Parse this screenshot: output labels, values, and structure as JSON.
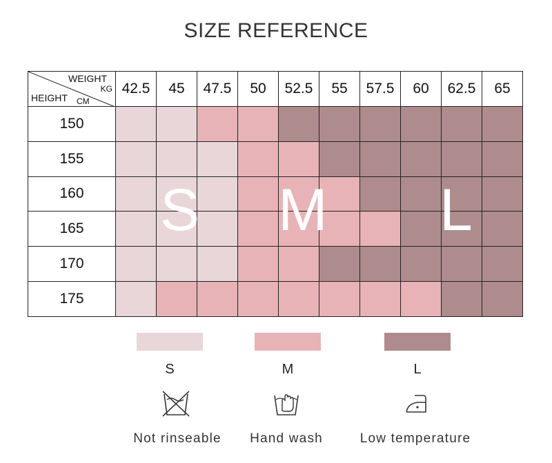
{
  "title": "SIZE REFERENCE",
  "corner": {
    "weight": "WEIGHT",
    "kg": "KG",
    "height": "HEIGHT",
    "cm": "CM"
  },
  "weights": [
    "42.5",
    "45",
    "47.5",
    "50",
    "52.5",
    "55",
    "57.5",
    "60",
    "62.5",
    "65"
  ],
  "heights": [
    "150",
    "155",
    "160",
    "165",
    "170",
    "175"
  ],
  "size_map": [
    [
      "S",
      "S",
      "M",
      "M",
      "L",
      "L",
      "L",
      "L",
      "L",
      "L"
    ],
    [
      "S",
      "S",
      "S",
      "M",
      "M",
      "L",
      "L",
      "L",
      "L",
      "L"
    ],
    [
      "S",
      "S",
      "S",
      "M",
      "M",
      "M",
      "L",
      "L",
      "L",
      "L"
    ],
    [
      "S",
      "S",
      "S",
      "M",
      "M",
      "M",
      "M",
      "L",
      "L",
      "L"
    ],
    [
      "S",
      "S",
      "S",
      "M",
      "M",
      "L",
      "L",
      "L",
      "L",
      "L"
    ],
    [
      "S",
      "M",
      "M",
      "M",
      "M",
      "M",
      "M",
      "M",
      "L",
      "L"
    ]
  ],
  "zone_letters": {
    "S": "S",
    "M": "M",
    "L": "L"
  },
  "colors": {
    "S": "#e8d6d9",
    "M": "#e8b3b6",
    "L": "#ae8b8c"
  },
  "legend": [
    {
      "label": "S",
      "color": "#e8d6d9"
    },
    {
      "label": "M",
      "color": "#e8b3b6"
    },
    {
      "label": "L",
      "color": "#ae8b8c"
    }
  ],
  "care": [
    {
      "icon": "not-rinseable-icon",
      "label": "Not rinseable"
    },
    {
      "icon": "hand-wash-icon",
      "label": "Hand wash"
    },
    {
      "icon": "iron-low-temperature-icon",
      "label": "Low temperature"
    }
  ]
}
